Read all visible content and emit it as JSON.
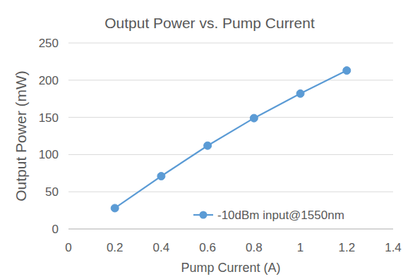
{
  "chart_data": {
    "type": "line",
    "title": "Output Power vs. Pump Current",
    "x_label": "Pump Current (A)",
    "y_label": "Output Power (mW)",
    "x": [
      0.2,
      0.4,
      0.6,
      0.8,
      1,
      1.2
    ],
    "series": [
      {
        "name": "-10dBm input@1550nm",
        "color": "#5b9bd5",
        "marker": "circle",
        "values": [
          28,
          71,
          112,
          149,
          182,
          213
        ]
      }
    ],
    "xlim": [
      0,
      1.4
    ],
    "xticks": [
      0,
      0.2,
      0.4,
      0.6,
      0.8,
      1,
      1.2,
      1.4
    ],
    "ylim": [
      0,
      250
    ],
    "yticks": [
      0,
      50,
      100,
      150,
      200,
      250
    ],
    "grid": true,
    "legend": "bottom-right"
  }
}
